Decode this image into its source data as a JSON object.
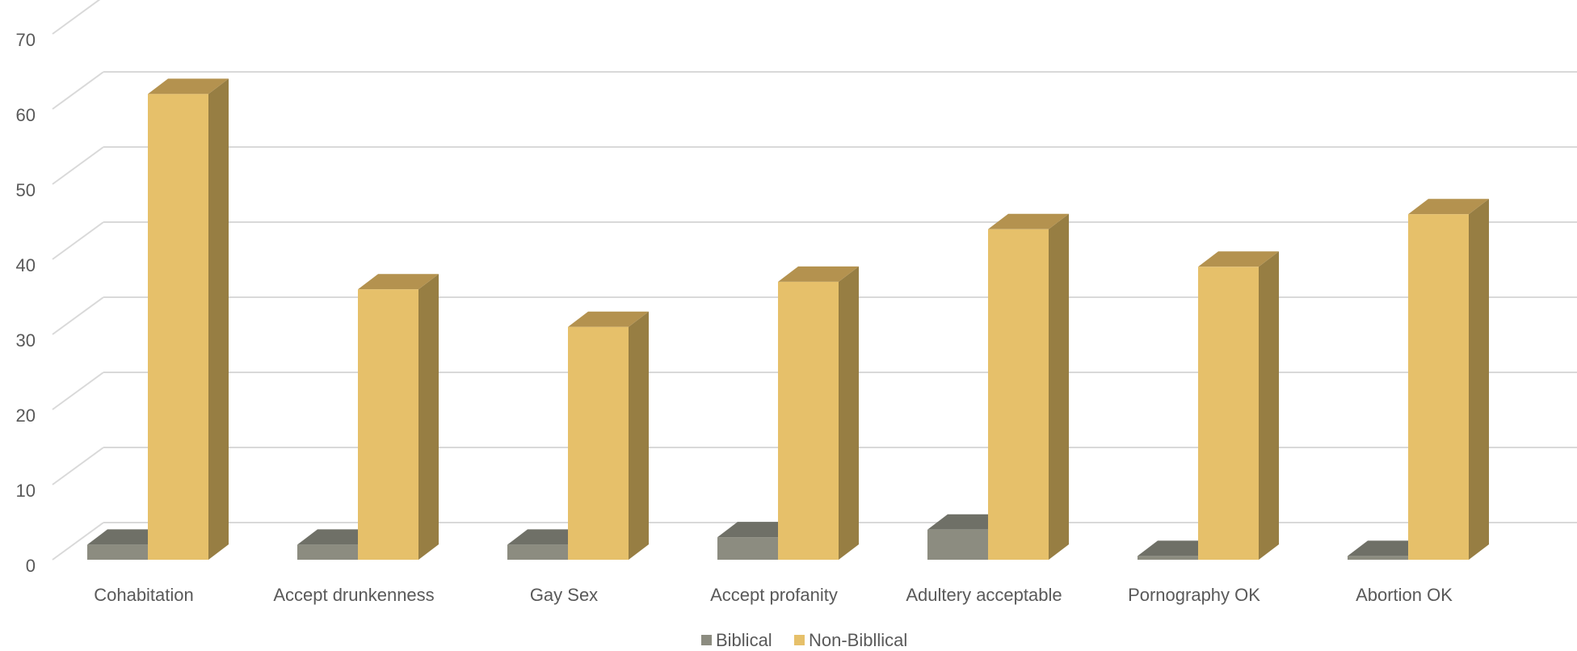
{
  "chart_data": {
    "type": "bar",
    "style": "3d-clustered-column",
    "title": "",
    "xlabel": "",
    "ylabel": "",
    "ylim": [
      0,
      70
    ],
    "yticks": [
      0,
      10,
      20,
      30,
      40,
      50,
      60,
      70
    ],
    "grid": true,
    "legend_position": "bottom",
    "categories": [
      "Cohabitation",
      "Accept drunkenness",
      "Gay Sex",
      "Accept profanity",
      "Adultery acceptable",
      "Pornography OK",
      "Abortion OK"
    ],
    "series": [
      {
        "name": "Biblical",
        "values": [
          2,
          2,
          2,
          3,
          4,
          0.5,
          0.5
        ],
        "color": "#8c8c80",
        "top_color": "#6f7067",
        "side_color": "#6a6b62"
      },
      {
        "name": "Non-Bibllical",
        "values": [
          62,
          36,
          31,
          37,
          44,
          39,
          46
        ],
        "color": "#e6c06a",
        "top_color": "#b4924f",
        "side_color": "#977e43"
      }
    ]
  }
}
